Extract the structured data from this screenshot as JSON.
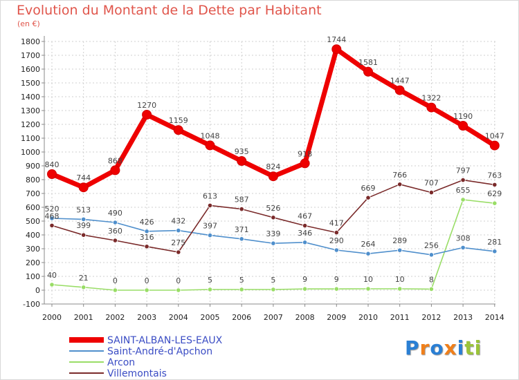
{
  "chart_data": {
    "type": "line",
    "title": "Evolution du Montant de la Dette par Habitant",
    "subtitle": "(en €)",
    "x": [
      "2000",
      "2001",
      "2002",
      "2003",
      "2004",
      "2005",
      "2006",
      "2007",
      "2008",
      "2009",
      "2010",
      "2011",
      "2012",
      "2013",
      "2014"
    ],
    "ylim": [
      -100,
      1800
    ],
    "yticks": [
      -100,
      0,
      100,
      200,
      300,
      400,
      500,
      600,
      700,
      800,
      900,
      1000,
      1100,
      1200,
      1300,
      1400,
      1500,
      1600,
      1700,
      1800
    ],
    "grid": true,
    "legend_position": "bottom-left",
    "series": [
      {
        "name": "SAINT-ALBAN-LES-EAUX",
        "color": "#ee0000",
        "values": [
          840,
          744,
          868,
          1270,
          1159,
          1048,
          935,
          824,
          918,
          1744,
          1581,
          1447,
          1322,
          1190,
          1047
        ],
        "labels": [
          "840",
          "744",
          "868",
          "1270",
          "1159",
          "1048",
          "935",
          "824",
          "918",
          "1744",
          "1581",
          "1447",
          "1322",
          "1190",
          "1047"
        ]
      },
      {
        "name": "Saint-André-d'Apchon",
        "color": "#4f8fcc",
        "values": [
          520,
          513,
          490,
          426,
          432,
          397,
          371,
          339,
          346,
          290,
          264,
          289,
          256,
          308,
          281
        ],
        "labels": [
          "520",
          "513",
          "490",
          "426",
          "432",
          "397",
          "371",
          "339",
          "346",
          "290",
          "264",
          "289",
          "256",
          "308",
          "281"
        ]
      },
      {
        "name": "Arcon",
        "color": "#99dd66",
        "values": [
          40,
          21,
          0,
          0,
          0,
          5,
          5,
          5,
          9,
          9,
          10,
          10,
          8,
          655,
          629
        ],
        "labels": [
          "40",
          "21",
          "0",
          "0",
          "0",
          "5",
          "5",
          "5",
          "9",
          "9",
          "10",
          "10",
          "8",
          "655",
          "629"
        ]
      },
      {
        "name": "Villemontais",
        "color": "#7a2a2a",
        "values": [
          468,
          399,
          360,
          316,
          275,
          613,
          587,
          526,
          467,
          417,
          669,
          766,
          707,
          797,
          763
        ],
        "labels": [
          "468",
          "399",
          "360",
          "316",
          "275",
          "613",
          "587",
          "526",
          "467",
          "417",
          "669",
          "766",
          "707",
          "797",
          "763"
        ]
      }
    ]
  },
  "logo": {
    "letters": [
      "P",
      "r",
      "o",
      "x",
      "i",
      "t",
      "i"
    ],
    "colors": [
      "#2a7fd4",
      "#f07f1a",
      "#2a7fd4",
      "#f07f1a",
      "#2a7fd4",
      "#9bc43a",
      "#9bc43a"
    ]
  }
}
